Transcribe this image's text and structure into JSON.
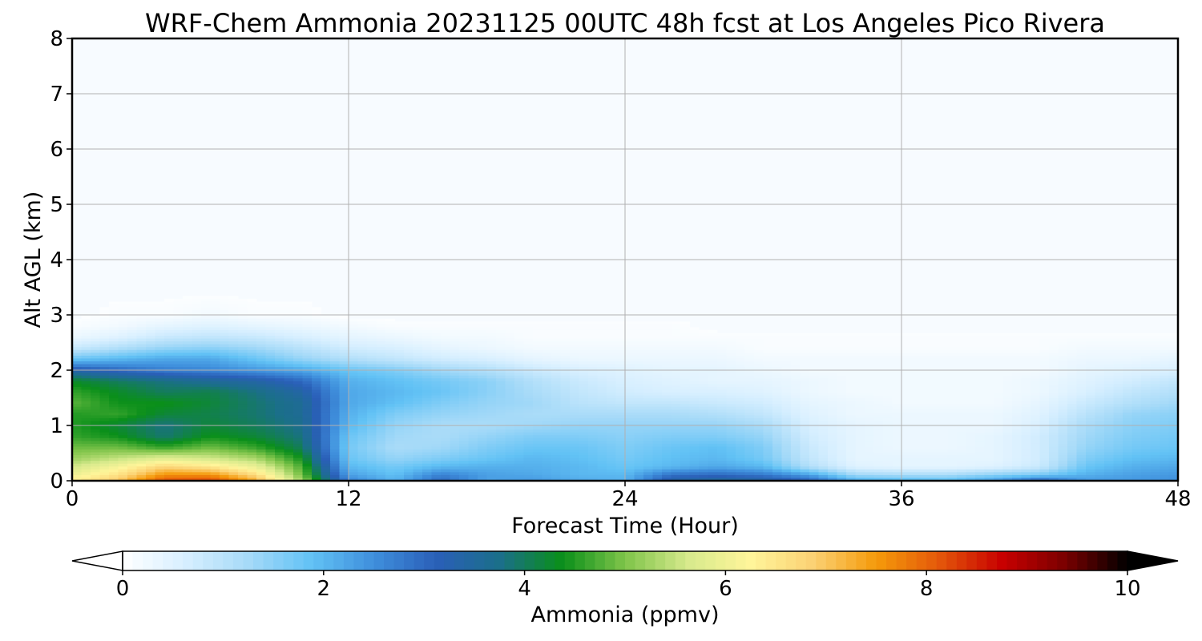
{
  "chart_data": {
    "type": "heatmap",
    "title": "WRF-Chem Ammonia  20231125 00UTC 48h fcst at Los Angeles Pico Rivera",
    "xlabel": "Forecast Time (Hour)",
    "ylabel": "Alt AGL (km)",
    "xlim": [
      0,
      48
    ],
    "ylim": [
      0,
      8
    ],
    "xticks": [
      0,
      12,
      24,
      36,
      48
    ],
    "yticks": [
      0,
      1,
      2,
      3,
      4,
      5,
      6,
      7,
      8
    ],
    "grid": true,
    "colorbar": {
      "label": "Ammonia  (ppmv)",
      "range": [
        0,
        10
      ],
      "ticks": [
        0,
        2,
        4,
        6,
        8,
        10
      ],
      "extend": "both",
      "colors": [
        "#ffffff",
        "#d7efff",
        "#a6daf8",
        "#62c2f5",
        "#3f8fdc",
        "#2a5fb8",
        "#1b6f8a",
        "#0a8f1a",
        "#7fc44a",
        "#d7ea8c",
        "#fff59a",
        "#fbd173",
        "#f59a0a",
        "#e4580a",
        "#c80000",
        "#7a0000",
        "#000000"
      ],
      "under_color": "#ffffff",
      "over_color": "#000000"
    },
    "x": [
      0,
      2,
      4,
      6,
      8,
      10,
      12,
      14,
      16,
      18,
      20,
      22,
      24,
      26,
      28,
      30,
      32,
      34,
      36,
      38,
      40,
      42,
      44,
      46,
      48
    ],
    "y": [
      0,
      0.1,
      0.25,
      0.4,
      0.6,
      0.8,
      1.0,
      1.2,
      1.4,
      1.6,
      1.8,
      2.0,
      2.2,
      2.4,
      2.6,
      2.8,
      3.0,
      3.5,
      4.0,
      5.0,
      6.0,
      7.0,
      8.0
    ],
    "values": [
      [
        6.4,
        7.0,
        8.2,
        8.3,
        7.3,
        5.2,
        2.7,
        2.1,
        3.0,
        2.3,
        2.4,
        2.2,
        2.1,
        3.4,
        3.6,
        3.5,
        3.1,
        2.2,
        2.1,
        2.0,
        2.4,
        3.2,
        2.4,
        2.4,
        2.5
      ],
      [
        6.0,
        6.6,
        7.6,
        7.6,
        6.7,
        4.9,
        2.3,
        1.9,
        2.7,
        2.3,
        2.2,
        2.0,
        2.0,
        2.9,
        3.0,
        2.8,
        2.3,
        1.3,
        1.2,
        1.2,
        1.5,
        1.7,
        2.1,
        2.3,
        2.4
      ],
      [
        5.6,
        6.1,
        6.8,
        6.5,
        5.9,
        4.7,
        2.0,
        1.7,
        2.0,
        2.1,
        2.1,
        2.0,
        1.8,
        2.0,
        2.2,
        2.0,
        1.1,
        0.5,
        0.4,
        0.4,
        0.5,
        0.8,
        1.8,
        2.1,
        2.2
      ],
      [
        5.2,
        5.5,
        5.8,
        5.6,
        5.3,
        4.4,
        1.8,
        1.4,
        1.6,
        1.8,
        2.0,
        1.9,
        1.7,
        1.9,
        2.0,
        1.7,
        0.9,
        0.4,
        0.4,
        0.4,
        0.4,
        0.7,
        1.6,
        1.9,
        2.0
      ],
      [
        4.9,
        4.9,
        4.6,
        4.9,
        4.6,
        4.0,
        1.7,
        1.2,
        1.3,
        1.6,
        1.8,
        1.8,
        1.6,
        1.8,
        1.9,
        1.6,
        0.8,
        0.4,
        0.3,
        0.3,
        0.4,
        0.7,
        1.4,
        1.7,
        1.8
      ],
      [
        4.6,
        4.4,
        3.9,
        4.4,
        4.2,
        3.8,
        1.8,
        1.3,
        1.2,
        1.4,
        1.6,
        1.6,
        1.5,
        1.6,
        1.6,
        1.4,
        0.7,
        0.4,
        0.3,
        0.3,
        0.4,
        0.7,
        1.3,
        1.6,
        1.7
      ],
      [
        4.5,
        4.2,
        3.8,
        4.2,
        4.0,
        3.7,
        2.0,
        1.4,
        1.2,
        1.2,
        1.3,
        1.4,
        1.4,
        1.4,
        1.4,
        1.2,
        0.6,
        0.4,
        0.3,
        0.3,
        0.3,
        0.6,
        1.2,
        1.5,
        1.6
      ],
      [
        4.5,
        4.6,
        4.2,
        4.1,
        3.9,
        3.6,
        2.1,
        1.6,
        1.4,
        1.3,
        1.2,
        1.2,
        1.2,
        1.2,
        1.1,
        0.9,
        0.5,
        0.3,
        0.3,
        0.3,
        0.3,
        0.5,
        1.0,
        1.4,
        1.5
      ],
      [
        4.8,
        4.4,
        4.4,
        4.2,
        3.9,
        3.6,
        2.2,
        1.9,
        1.6,
        1.4,
        1.3,
        1.0,
        0.9,
        0.9,
        0.8,
        0.7,
        0.4,
        0.3,
        0.2,
        0.2,
        0.2,
        0.4,
        0.8,
        1.1,
        1.3
      ],
      [
        4.6,
        4.3,
        4.0,
        4.1,
        3.8,
        3.4,
        2.2,
        2.0,
        1.8,
        1.5,
        1.2,
        0.9,
        0.7,
        0.6,
        0.6,
        0.5,
        0.3,
        0.2,
        0.2,
        0.2,
        0.2,
        0.3,
        0.6,
        0.9,
        1.1
      ],
      [
        4.3,
        4.0,
        3.8,
        3.6,
        3.4,
        3.0,
        2.1,
        1.9,
        1.7,
        1.5,
        1.1,
        0.8,
        0.6,
        0.5,
        0.4,
        0.4,
        0.3,
        0.2,
        0.2,
        0.2,
        0.2,
        0.3,
        0.5,
        0.7,
        0.9
      ],
      [
        3.3,
        3.0,
        2.7,
        2.6,
        2.4,
        2.2,
        1.8,
        1.6,
        1.3,
        1.1,
        0.8,
        0.6,
        0.5,
        0.4,
        0.4,
        0.3,
        0.2,
        0.2,
        0.2,
        0.2,
        0.2,
        0.2,
        0.4,
        0.5,
        0.6
      ],
      [
        1.8,
        2.0,
        2.2,
        2.2,
        1.8,
        1.4,
        1.1,
        0.9,
        0.7,
        0.6,
        0.4,
        0.3,
        0.3,
        0.3,
        0.3,
        0.2,
        0.2,
        0.2,
        0.2,
        0.2,
        0.2,
        0.2,
        0.3,
        0.3,
        0.4
      ],
      [
        0.8,
        1.1,
        1.4,
        1.5,
        1.3,
        1.0,
        0.7,
        0.6,
        0.4,
        0.3,
        0.2,
        0.2,
        0.2,
        0.2,
        0.2,
        0.1,
        0.1,
        0.1,
        0.1,
        0.1,
        0.1,
        0.1,
        0.2,
        0.2,
        0.2
      ],
      [
        0.3,
        0.5,
        0.8,
        0.9,
        0.8,
        0.6,
        0.4,
        0.3,
        0.2,
        0.2,
        0.1,
        0.1,
        0.1,
        0.1,
        0.1,
        0.1,
        0.1,
        0.1,
        0.1,
        0.1,
        0.1,
        0.1,
        0.1,
        0.1,
        0.1
      ],
      [
        0.1,
        0.2,
        0.4,
        0.5,
        0.4,
        0.3,
        0.2,
        0.1,
        0.1,
        0.1,
        0.1,
        0.1,
        0.1,
        0.1,
        0.0,
        0.0,
        0.0,
        0.0,
        0.0,
        0.0,
        0.0,
        0.0,
        0.0,
        0.0,
        0.0
      ],
      [
        0.0,
        0.1,
        0.1,
        0.2,
        0.1,
        0.1,
        0.0,
        0.0,
        0.0,
        0.0,
        0.0,
        0.0,
        0.0,
        0.0,
        0.0,
        0.0,
        0.0,
        0.0,
        0.0,
        0.0,
        0.0,
        0.0,
        0.0,
        0.0,
        0.0
      ],
      [
        0.0,
        0.0,
        0.0,
        0.0,
        0.0,
        0.0,
        0.0,
        0.0,
        0.0,
        0.0,
        0.0,
        0.0,
        0.0,
        0.0,
        0.0,
        0.0,
        0.0,
        0.0,
        0.0,
        0.0,
        0.0,
        0.0,
        0.0,
        0.0,
        0.0
      ],
      [
        0.0,
        0.0,
        0.0,
        0.0,
        0.0,
        0.0,
        0.0,
        0.0,
        0.0,
        0.0,
        0.0,
        0.0,
        0.0,
        0.0,
        0.0,
        0.0,
        0.0,
        0.0,
        0.0,
        0.0,
        0.0,
        0.0,
        0.0,
        0.0,
        0.0
      ],
      [
        0.0,
        0.0,
        0.0,
        0.0,
        0.0,
        0.0,
        0.0,
        0.0,
        0.0,
        0.0,
        0.0,
        0.0,
        0.0,
        0.0,
        0.0,
        0.0,
        0.0,
        0.0,
        0.0,
        0.0,
        0.0,
        0.0,
        0.0,
        0.0,
        0.0
      ],
      [
        0.0,
        0.0,
        0.0,
        0.0,
        0.0,
        0.0,
        0.0,
        0.0,
        0.0,
        0.0,
        0.0,
        0.0,
        0.0,
        0.0,
        0.0,
        0.0,
        0.0,
        0.0,
        0.0,
        0.0,
        0.0,
        0.0,
        0.0,
        0.0,
        0.0
      ],
      [
        0.0,
        0.0,
        0.0,
        0.0,
        0.0,
        0.0,
        0.0,
        0.0,
        0.0,
        0.0,
        0.0,
        0.0,
        0.0,
        0.0,
        0.0,
        0.0,
        0.0,
        0.0,
        0.0,
        0.0,
        0.0,
        0.0,
        0.0,
        0.0,
        0.0
      ],
      [
        0.0,
        0.0,
        0.0,
        0.0,
        0.0,
        0.0,
        0.0,
        0.0,
        0.0,
        0.0,
        0.0,
        0.0,
        0.0,
        0.0,
        0.0,
        0.0,
        0.0,
        0.0,
        0.0,
        0.0,
        0.0,
        0.0,
        0.0,
        0.0,
        0.0
      ]
    ]
  }
}
